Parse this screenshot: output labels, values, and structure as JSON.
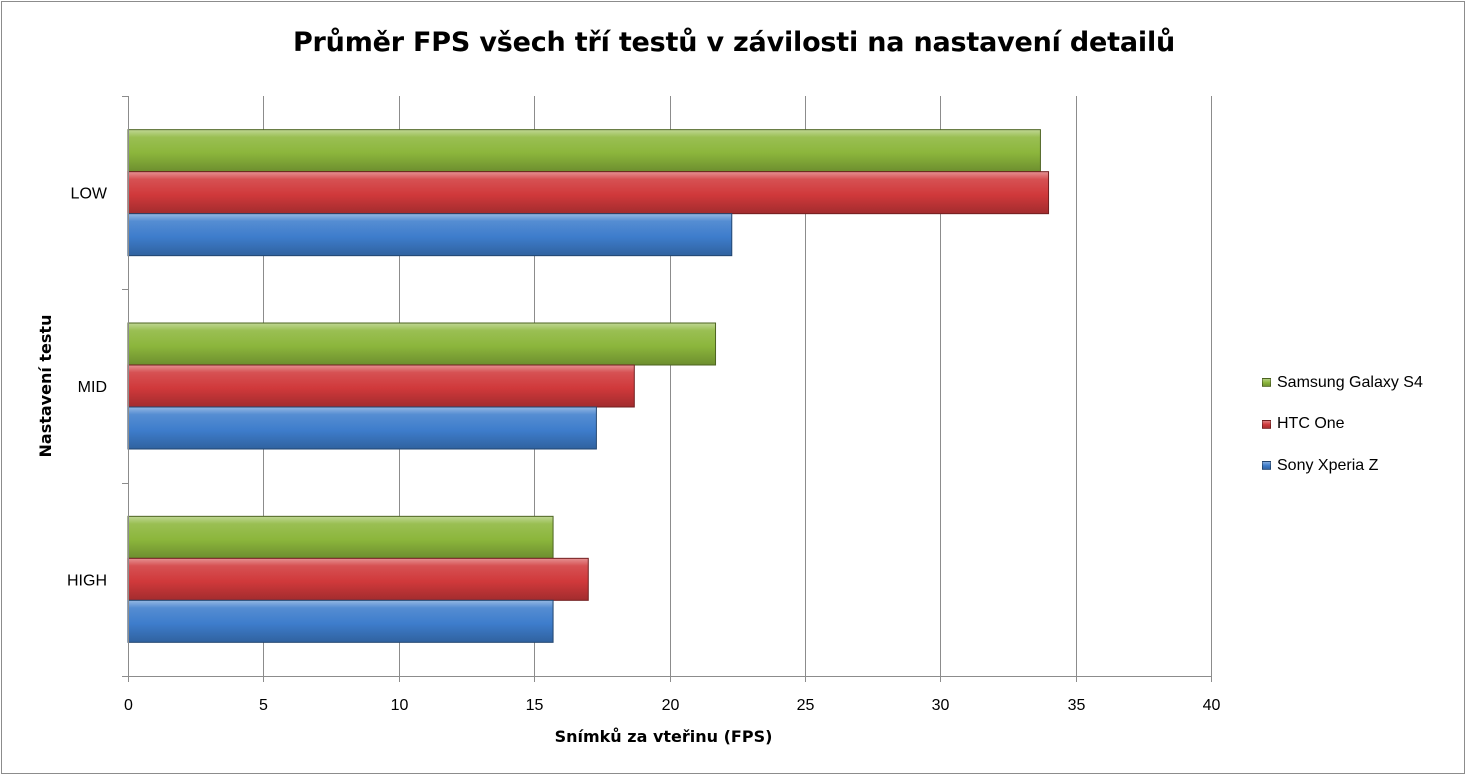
{
  "chart_data": {
    "type": "bar",
    "orientation": "horizontal",
    "title": "Průměr FPS všech tří testů v závilosti na nastavení detailů",
    "xlabel": "Snímků za vteřinu (FPS)",
    "ylabel": "Nastavení testu",
    "categories": [
      "LOW",
      "MID",
      "HIGH"
    ],
    "xlim": [
      0,
      40
    ],
    "xticks": [
      "0",
      "5",
      "10",
      "15",
      "20",
      "25",
      "30",
      "35",
      "40"
    ],
    "grid": true,
    "legend_position": "right",
    "series": [
      {
        "name": "Samsung Galaxy S4",
        "color": "#8cb63c",
        "values": [
          33.7,
          21.7,
          15.7
        ]
      },
      {
        "name": "HTC One",
        "color": "#d0393b",
        "values": [
          34.0,
          18.7,
          17.0
        ]
      },
      {
        "name": "Sony Xperia Z",
        "color": "#3e7dcc",
        "values": [
          22.3,
          17.3,
          15.7
        ]
      }
    ]
  }
}
